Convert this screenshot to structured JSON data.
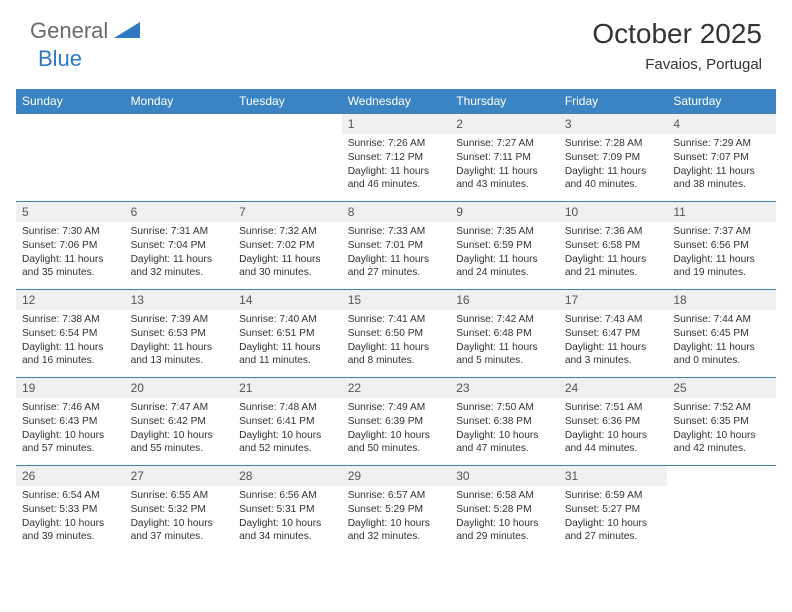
{
  "branding": {
    "general": "General",
    "blue": "Blue",
    "accent_color": "#2f79c2"
  },
  "title": "October 2025",
  "location": "Favaios, Portugal",
  "weekdays": [
    "Sunday",
    "Monday",
    "Tuesday",
    "Wednesday",
    "Thursday",
    "Friday",
    "Saturday"
  ],
  "colors": {
    "header_bg": "#3b84c4",
    "header_text": "#ffffff",
    "daynum_bg": "#eef0f1",
    "row_border": "#4a7ca5",
    "body_text": "#333333"
  },
  "grid": [
    [
      {
        "n": "",
        "sr": "",
        "ss": "",
        "dl1": "",
        "dl2": ""
      },
      {
        "n": "",
        "sr": "",
        "ss": "",
        "dl1": "",
        "dl2": ""
      },
      {
        "n": "",
        "sr": "",
        "ss": "",
        "dl1": "",
        "dl2": ""
      },
      {
        "n": "1",
        "sr": "Sunrise: 7:26 AM",
        "ss": "Sunset: 7:12 PM",
        "dl1": "Daylight: 11 hours",
        "dl2": "and 46 minutes."
      },
      {
        "n": "2",
        "sr": "Sunrise: 7:27 AM",
        "ss": "Sunset: 7:11 PM",
        "dl1": "Daylight: 11 hours",
        "dl2": "and 43 minutes."
      },
      {
        "n": "3",
        "sr": "Sunrise: 7:28 AM",
        "ss": "Sunset: 7:09 PM",
        "dl1": "Daylight: 11 hours",
        "dl2": "and 40 minutes."
      },
      {
        "n": "4",
        "sr": "Sunrise: 7:29 AM",
        "ss": "Sunset: 7:07 PM",
        "dl1": "Daylight: 11 hours",
        "dl2": "and 38 minutes."
      }
    ],
    [
      {
        "n": "5",
        "sr": "Sunrise: 7:30 AM",
        "ss": "Sunset: 7:06 PM",
        "dl1": "Daylight: 11 hours",
        "dl2": "and 35 minutes."
      },
      {
        "n": "6",
        "sr": "Sunrise: 7:31 AM",
        "ss": "Sunset: 7:04 PM",
        "dl1": "Daylight: 11 hours",
        "dl2": "and 32 minutes."
      },
      {
        "n": "7",
        "sr": "Sunrise: 7:32 AM",
        "ss": "Sunset: 7:02 PM",
        "dl1": "Daylight: 11 hours",
        "dl2": "and 30 minutes."
      },
      {
        "n": "8",
        "sr": "Sunrise: 7:33 AM",
        "ss": "Sunset: 7:01 PM",
        "dl1": "Daylight: 11 hours",
        "dl2": "and 27 minutes."
      },
      {
        "n": "9",
        "sr": "Sunrise: 7:35 AM",
        "ss": "Sunset: 6:59 PM",
        "dl1": "Daylight: 11 hours",
        "dl2": "and 24 minutes."
      },
      {
        "n": "10",
        "sr": "Sunrise: 7:36 AM",
        "ss": "Sunset: 6:58 PM",
        "dl1": "Daylight: 11 hours",
        "dl2": "and 21 minutes."
      },
      {
        "n": "11",
        "sr": "Sunrise: 7:37 AM",
        "ss": "Sunset: 6:56 PM",
        "dl1": "Daylight: 11 hours",
        "dl2": "and 19 minutes."
      }
    ],
    [
      {
        "n": "12",
        "sr": "Sunrise: 7:38 AM",
        "ss": "Sunset: 6:54 PM",
        "dl1": "Daylight: 11 hours",
        "dl2": "and 16 minutes."
      },
      {
        "n": "13",
        "sr": "Sunrise: 7:39 AM",
        "ss": "Sunset: 6:53 PM",
        "dl1": "Daylight: 11 hours",
        "dl2": "and 13 minutes."
      },
      {
        "n": "14",
        "sr": "Sunrise: 7:40 AM",
        "ss": "Sunset: 6:51 PM",
        "dl1": "Daylight: 11 hours",
        "dl2": "and 11 minutes."
      },
      {
        "n": "15",
        "sr": "Sunrise: 7:41 AM",
        "ss": "Sunset: 6:50 PM",
        "dl1": "Daylight: 11 hours",
        "dl2": "and 8 minutes."
      },
      {
        "n": "16",
        "sr": "Sunrise: 7:42 AM",
        "ss": "Sunset: 6:48 PM",
        "dl1": "Daylight: 11 hours",
        "dl2": "and 5 minutes."
      },
      {
        "n": "17",
        "sr": "Sunrise: 7:43 AM",
        "ss": "Sunset: 6:47 PM",
        "dl1": "Daylight: 11 hours",
        "dl2": "and 3 minutes."
      },
      {
        "n": "18",
        "sr": "Sunrise: 7:44 AM",
        "ss": "Sunset: 6:45 PM",
        "dl1": "Daylight: 11 hours",
        "dl2": "and 0 minutes."
      }
    ],
    [
      {
        "n": "19",
        "sr": "Sunrise: 7:46 AM",
        "ss": "Sunset: 6:43 PM",
        "dl1": "Daylight: 10 hours",
        "dl2": "and 57 minutes."
      },
      {
        "n": "20",
        "sr": "Sunrise: 7:47 AM",
        "ss": "Sunset: 6:42 PM",
        "dl1": "Daylight: 10 hours",
        "dl2": "and 55 minutes."
      },
      {
        "n": "21",
        "sr": "Sunrise: 7:48 AM",
        "ss": "Sunset: 6:41 PM",
        "dl1": "Daylight: 10 hours",
        "dl2": "and 52 minutes."
      },
      {
        "n": "22",
        "sr": "Sunrise: 7:49 AM",
        "ss": "Sunset: 6:39 PM",
        "dl1": "Daylight: 10 hours",
        "dl2": "and 50 minutes."
      },
      {
        "n": "23",
        "sr": "Sunrise: 7:50 AM",
        "ss": "Sunset: 6:38 PM",
        "dl1": "Daylight: 10 hours",
        "dl2": "and 47 minutes."
      },
      {
        "n": "24",
        "sr": "Sunrise: 7:51 AM",
        "ss": "Sunset: 6:36 PM",
        "dl1": "Daylight: 10 hours",
        "dl2": "and 44 minutes."
      },
      {
        "n": "25",
        "sr": "Sunrise: 7:52 AM",
        "ss": "Sunset: 6:35 PM",
        "dl1": "Daylight: 10 hours",
        "dl2": "and 42 minutes."
      }
    ],
    [
      {
        "n": "26",
        "sr": "Sunrise: 6:54 AM",
        "ss": "Sunset: 5:33 PM",
        "dl1": "Daylight: 10 hours",
        "dl2": "and 39 minutes."
      },
      {
        "n": "27",
        "sr": "Sunrise: 6:55 AM",
        "ss": "Sunset: 5:32 PM",
        "dl1": "Daylight: 10 hours",
        "dl2": "and 37 minutes."
      },
      {
        "n": "28",
        "sr": "Sunrise: 6:56 AM",
        "ss": "Sunset: 5:31 PM",
        "dl1": "Daylight: 10 hours",
        "dl2": "and 34 minutes."
      },
      {
        "n": "29",
        "sr": "Sunrise: 6:57 AM",
        "ss": "Sunset: 5:29 PM",
        "dl1": "Daylight: 10 hours",
        "dl2": "and 32 minutes."
      },
      {
        "n": "30",
        "sr": "Sunrise: 6:58 AM",
        "ss": "Sunset: 5:28 PM",
        "dl1": "Daylight: 10 hours",
        "dl2": "and 29 minutes."
      },
      {
        "n": "31",
        "sr": "Sunrise: 6:59 AM",
        "ss": "Sunset: 5:27 PM",
        "dl1": "Daylight: 10 hours",
        "dl2": "and 27 minutes."
      },
      {
        "n": "",
        "sr": "",
        "ss": "",
        "dl1": "",
        "dl2": ""
      }
    ]
  ]
}
